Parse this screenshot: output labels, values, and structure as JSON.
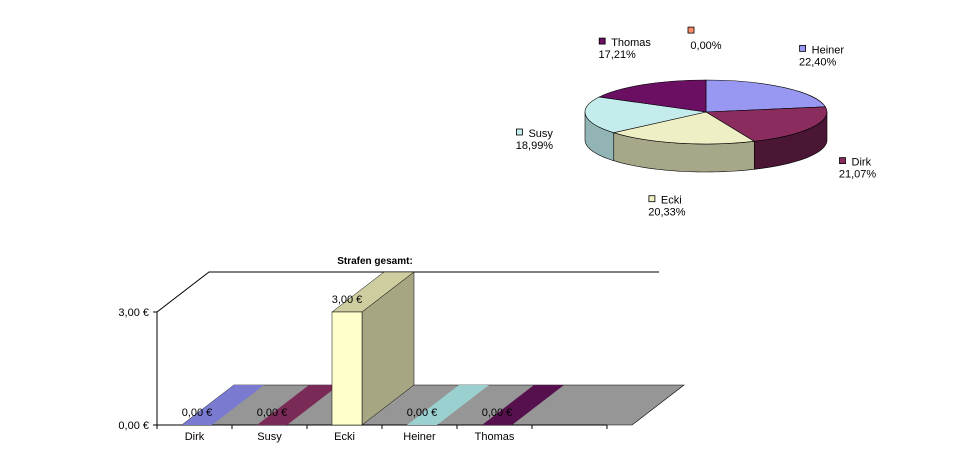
{
  "chart_data": [
    {
      "type": "pie",
      "title": "",
      "slices": [
        {
          "name": "Heiner",
          "label": "22,40%",
          "value": 22.4,
          "color": "#9898f2",
          "side": "#5e5ea8"
        },
        {
          "name": "Dirk",
          "label": "21,07%",
          "value": 21.07,
          "color": "#8a2d5e",
          "side": "#4b1634"
        },
        {
          "name": "Ecki",
          "label": "20,33%",
          "value": 20.33,
          "color": "#efefc5",
          "side": "#a7a78a"
        },
        {
          "name": "Susy",
          "label": "18,99%",
          "value": 18.99,
          "color": "#c5ecec",
          "side": "#92b4b4"
        },
        {
          "name": "Thomas",
          "label": "17,21%",
          "value": 17.21,
          "color": "#6a0f62",
          "side": "#3e083a"
        },
        {
          "name": "",
          "label": "0,00%",
          "value": 0.0,
          "color": "#ff8c6b",
          "side": "#c06048"
        }
      ]
    },
    {
      "type": "bar",
      "title": "Strafen gesamt:",
      "categories": [
        "Dirk",
        "Susy",
        "Ecki",
        "Heiner",
        "Thomas"
      ],
      "values": [
        0,
        0,
        3,
        0,
        0
      ],
      "data_labels": [
        "0,00 €",
        "0,00 €",
        "3,00 €",
        "0,00 €",
        "0,00 €"
      ],
      "colors": [
        "#7a7ad0",
        "#7a2a56",
        "#ffffcc",
        "#9ad0d0",
        "#56104e"
      ],
      "yticks": [
        "0,00 €",
        "3,00 €"
      ],
      "ylim": [
        0,
        3
      ]
    }
  ]
}
